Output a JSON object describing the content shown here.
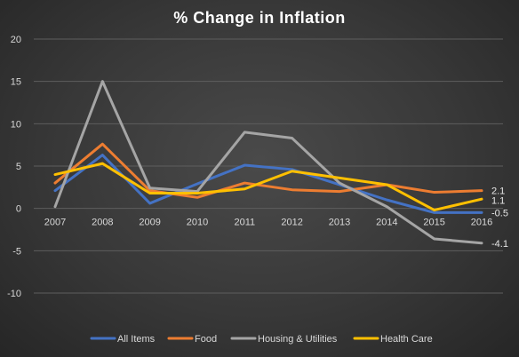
{
  "chart_data": {
    "type": "line",
    "title": "% Change in Inflation",
    "xlabel": "",
    "ylabel": "",
    "categories": [
      "2007",
      "2008",
      "2009",
      "2010",
      "2011",
      "2012",
      "2013",
      "2014",
      "2015",
      "2016"
    ],
    "ylim": [
      -10,
      20
    ],
    "yticks": [
      -10,
      -5,
      0,
      5,
      10,
      15,
      20
    ],
    "grid": true,
    "legend_position": "bottom",
    "series": [
      {
        "name": "All Items",
        "color": "#4472c4",
        "values": [
          2.1,
          6.3,
          0.6,
          2.9,
          5.1,
          4.6,
          2.8,
          1.0,
          -0.5,
          -0.5
        ]
      },
      {
        "name": "Food",
        "color": "#ed7d31",
        "values": [
          3.0,
          7.6,
          2.1,
          1.3,
          3.0,
          2.2,
          2.0,
          2.8,
          1.9,
          2.1
        ]
      },
      {
        "name": "Housing & Utilities",
        "color": "#a5a5a5",
        "values": [
          0.2,
          15.0,
          2.4,
          2.0,
          9.0,
          8.3,
          3.0,
          0.2,
          -3.6,
          -4.1
        ]
      },
      {
        "name": "Health Care",
        "color": "#ffc000",
        "values": [
          4.0,
          5.3,
          1.8,
          1.8,
          2.3,
          4.4,
          3.6,
          2.8,
          -0.2,
          1.1
        ]
      }
    ],
    "end_labels": [
      "2.1",
      "1.1",
      "-0.5",
      "-4.1"
    ]
  }
}
